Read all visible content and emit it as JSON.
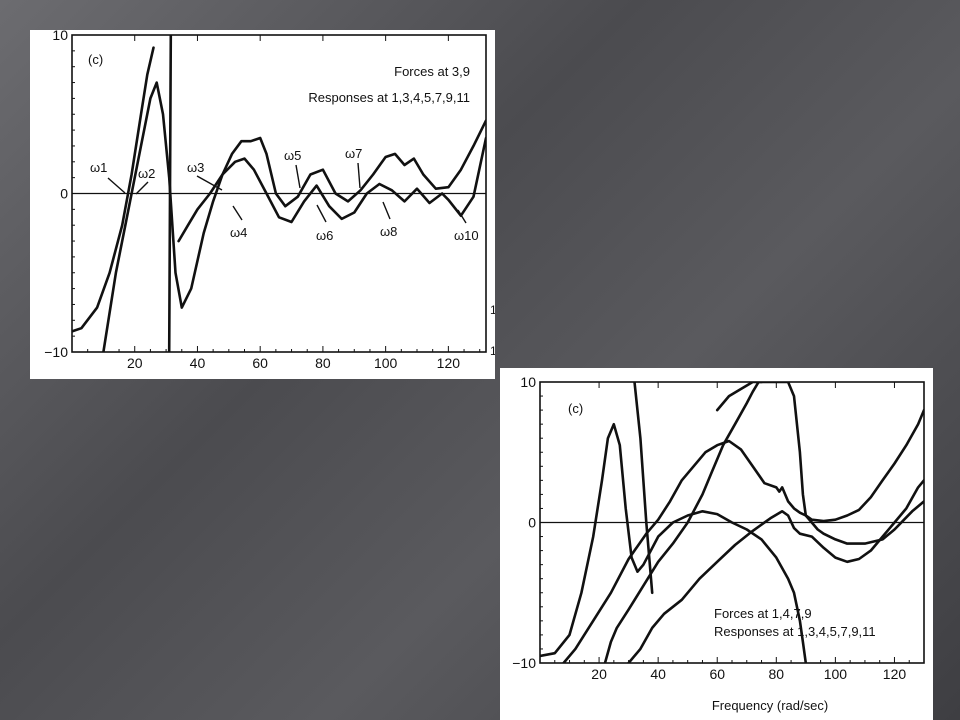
{
  "background_color": "#55555a",
  "charts": [
    {
      "type": "line",
      "panel_label": "(c)",
      "xticks": [
        20,
        40,
        60,
        80,
        100,
        120
      ],
      "yticks": [
        -10,
        0,
        10
      ],
      "xlim": [
        0,
        132
      ],
      "ylim": [
        -10,
        10
      ],
      "ann_lines": [
        "Forces at 3,9",
        "Responses at 1,3,4,5,7,9,11"
      ],
      "right_edge_marks": [
        "1",
        "1"
      ],
      "omega_labels": [
        "ω1",
        "ω2",
        "ω3",
        "ω4",
        "ω5",
        "ω6",
        "ω7",
        "ω8",
        "ω10"
      ],
      "chart_data": {
        "type": "line",
        "xlabel": "",
        "ylabel": "",
        "xlim": [
          0,
          132
        ],
        "ylim": [
          -10,
          10
        ],
        "series": [
          {
            "x": [
              0,
              3,
              8,
              12,
              16,
              19,
              22,
              24,
              26
            ],
            "y": [
              -8.7,
              -8.5,
              -7.2,
              -5,
              -2,
              1.2,
              5,
              7.5,
              9.2
            ]
          },
          {
            "x": [
              31,
              31.5
            ],
            "y": [
              -10,
              10
            ]
          },
          {
            "x": [
              10,
              14,
              18,
              22,
              25,
              27,
              29,
              31,
              33,
              35,
              38,
              42,
              45,
              48,
              51,
              54,
              57,
              60,
              62,
              65,
              68,
              72,
              76,
              80,
              84,
              88,
              92,
              96,
              100,
              103,
              106,
              109,
              112,
              116,
              120,
              124,
              128,
              132
            ],
            "y": [
              -10,
              -5,
              -1,
              3,
              6,
              7,
              5,
              1,
              -5,
              -7.2,
              -6,
              -2.5,
              -0.5,
              1.2,
              2.5,
              3.3,
              3.3,
              3.5,
              2.5,
              0,
              -0.8,
              -0.2,
              1.2,
              1.5,
              0,
              -0.5,
              0.2,
              1.2,
              2.3,
              2.5,
              1.8,
              2.2,
              1.2,
              0.3,
              0.4,
              1.5,
              3,
              4.6
            ]
          },
          {
            "x": [
              34,
              37,
              40,
              44,
              48,
              52,
              55,
              58,
              62,
              66,
              70,
              74,
              78,
              82,
              86,
              90,
              94,
              98,
              102,
              106,
              110,
              114,
              118,
              120,
              124,
              128,
              132
            ],
            "y": [
              -3,
              -2,
              -1,
              0,
              1.2,
              2,
              2.2,
              1.5,
              0,
              -1.5,
              -1.8,
              -0.5,
              0.5,
              -0.8,
              -1.6,
              -1.2,
              0,
              0.6,
              0.2,
              -0.5,
              0.3,
              -0.6,
              0,
              -0.4,
              -1.4,
              -0.2,
              3.5
            ]
          }
        ]
      }
    },
    {
      "type": "line",
      "panel_label": "(c)",
      "xticks": [
        20,
        40,
        60,
        80,
        100,
        120
      ],
      "yticks": [
        -10,
        0,
        10
      ],
      "xlim": [
        0,
        130
      ],
      "ylim": [
        -10,
        10
      ],
      "ann_lines": [
        "Forces at 1,4,7,9",
        "Responses at 1,3,4,5,7,9,11"
      ],
      "xlabel": "Frequency (rad/sec)",
      "chart_data": {
        "type": "line",
        "xlabel": "Frequency (rad/sec)",
        "ylabel": "",
        "xlim": [
          0,
          130
        ],
        "ylim": [
          -10,
          10
        ],
        "series": [
          {
            "x": [
              0,
              5,
              10,
              14,
              18,
              21,
              23,
              25,
              27,
              29,
              31,
              33,
              35,
              40,
              45,
              50,
              55,
              60,
              65,
              70,
              75,
              80,
              84,
              86,
              88,
              89,
              90
            ],
            "y": [
              -9.5,
              -9.3,
              -8,
              -5,
              -1,
              3,
              6,
              7,
              5.5,
              1,
              -2.5,
              -3.5,
              -3,
              -1,
              0,
              0.5,
              0.8,
              0.6,
              0,
              -0.5,
              -1.2,
              -2.5,
              -4,
              -5,
              -7,
              -8.5,
              -10
            ]
          },
          {
            "x": [
              22,
              24,
              26,
              30,
              35,
              40,
              45,
              50,
              55,
              58,
              62,
              66,
              70,
              72,
              74,
              75
            ],
            "y": [
              -10,
              -8.5,
              -7.5,
              -6.2,
              -4.5,
              -2.8,
              -1.5,
              0,
              2,
              3.5,
              5.5,
              7,
              8.5,
              9.3,
              10,
              10
            ]
          },
          {
            "x": [
              32,
              34,
              36,
              38
            ],
            "y": [
              10,
              6,
              0,
              -5
            ]
          },
          {
            "x": [
              8,
              12,
              18,
              24,
              30,
              36,
              40,
              44,
              48,
              52,
              56,
              60,
              64,
              68,
              72,
              76,
              80,
              81,
              82,
              84,
              86,
              88,
              90,
              92,
              96,
              100,
              104,
              108,
              112,
              116,
              120,
              124,
              128,
              130
            ],
            "y": [
              -10,
              -9,
              -7,
              -5,
              -2.6,
              -0.8,
              0.2,
              1.5,
              3,
              4,
              5,
              5.5,
              5.8,
              5.2,
              4,
              2.8,
              2.5,
              2.2,
              2.5,
              1.5,
              1,
              0.7,
              0.5,
              0.2,
              0.1,
              0.2,
              0.5,
              0.9,
              1.8,
              3,
              4.2,
              5.5,
              7,
              8
            ]
          },
          {
            "x": [
              60,
              64,
              68,
              72,
              76,
              80,
              84,
              86,
              88,
              89,
              90,
              92,
              94,
              96,
              98,
              100,
              104,
              110,
              116,
              120,
              126,
              130
            ],
            "y": [
              8,
              9,
              9.5,
              10,
              10,
              10,
              10,
              9,
              5,
              2,
              0.5,
              0,
              -0.5,
              -0.8,
              -1,
              -1.2,
              -1.5,
              -1.5,
              -1.2,
              -0.5,
              0.8,
              1.5
            ]
          },
          {
            "x": [
              30,
              34,
              38,
              42,
              48,
              54,
              60,
              66,
              72,
              78,
              82,
              84,
              86,
              88,
              92,
              96,
              100,
              104,
              108,
              112,
              116,
              120,
              124,
              128,
              130
            ],
            "y": [
              -10,
              -9,
              -7.5,
              -6.5,
              -5.5,
              -4,
              -2.8,
              -1.6,
              -0.6,
              0.3,
              0.8,
              0.5,
              -0.4,
              -0.8,
              -1,
              -1.8,
              -2.5,
              -2.8,
              -2.6,
              -2,
              -1,
              0,
              1,
              2.5,
              3
            ]
          }
        ]
      }
    }
  ]
}
